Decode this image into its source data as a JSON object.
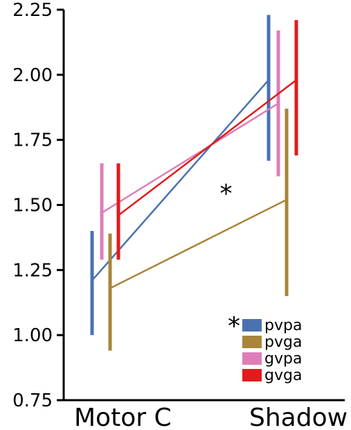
{
  "chart_data": {
    "type": "line",
    "categories": [
      "Motor C",
      "Shadow"
    ],
    "yticks": [
      "0.75",
      "1.00",
      "1.25",
      "1.50",
      "1.75",
      "2.00",
      "2.25"
    ],
    "ylim": [
      0.75,
      2.25
    ],
    "legend_position": "bottom-right",
    "series": [
      {
        "name": "pvpa",
        "color": "#4a72b0",
        "values": [
          1.21,
          1.98
        ],
        "err_low": [
          1.0,
          1.67
        ],
        "err_high": [
          1.4,
          2.23
        ],
        "significance": "*"
      },
      {
        "name": "pvga",
        "color": "#a8853a",
        "values": [
          1.18,
          1.52
        ],
        "err_low": [
          0.94,
          1.15
        ],
        "err_high": [
          1.39,
          1.87
        ],
        "significance": ""
      },
      {
        "name": "gvpa",
        "color": "#dc7fb8",
        "values": [
          1.47,
          1.89
        ],
        "err_low": [
          1.29,
          1.61
        ],
        "err_high": [
          1.66,
          2.17
        ],
        "significance": ""
      },
      {
        "name": "gvga",
        "color": "#e01b1b",
        "values": [
          1.46,
          1.98
        ],
        "err_low": [
          1.29,
          1.69
        ],
        "err_high": [
          1.66,
          2.21
        ],
        "significance": ""
      }
    ],
    "annotations": [
      {
        "text": "*",
        "x_fraction": 0.58,
        "y": 1.56
      }
    ]
  }
}
